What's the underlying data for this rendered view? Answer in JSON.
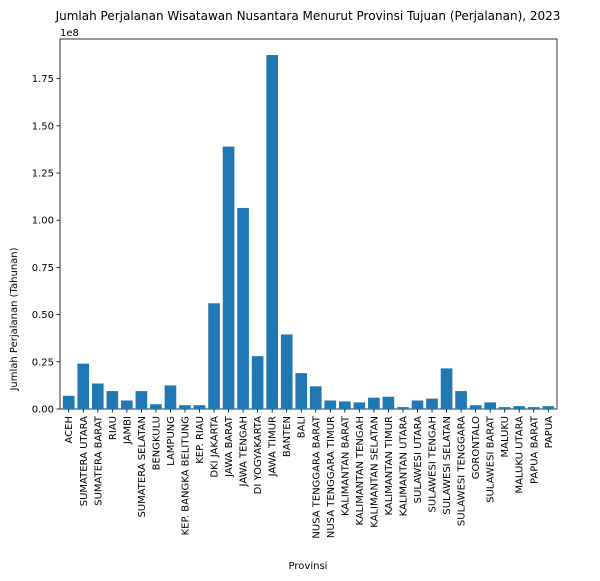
{
  "chart_data": {
    "type": "bar",
    "title": "Jumlah Perjalanan Wisatawan Nusantara Menurut Provinsi Tujuan (Perjalanan), 2023",
    "xlabel": "Provinsi",
    "ylabel": "Jumlah Perjalanan (Tahunan)",
    "y_offset_text": "1e8",
    "y_scale": 100000000,
    "ylim": [
      0,
      196000000
    ],
    "yticks": [
      0,
      25000000,
      50000000,
      75000000,
      100000000,
      125000000,
      150000000,
      175000000
    ],
    "ytick_labels": [
      "0.00",
      "0.25",
      "0.50",
      "0.75",
      "1.00",
      "1.25",
      "1.50",
      "1.75"
    ],
    "grid": false,
    "bar_color": "#1f77b4",
    "categories": [
      "ACEH",
      "SUMATERA UTARA",
      "SUMATERA BARAT",
      "RIAU",
      "JAMBI",
      "SUMATERA SELATAN",
      "BENGKULU",
      "LAMPUNG",
      "KEP. BANGKA BELITUNG",
      "KEP. RIAU",
      "DKI JAKARTA",
      "JAWA BARAT",
      "JAWA TENGAH",
      "DI YOGYAKARTA",
      "JAWA TIMUR",
      "BANTEN",
      "BALI",
      "NUSA TENGGARA BARAT",
      "NUSA TENGGARA TIMUR",
      "KALIMANTAN BARAT",
      "KALIMANTAN TENGAH",
      "KALIMANTAN SELATAN",
      "KALIMANTAN TIMUR",
      "KALIMANTAN UTARA",
      "SULAWESI UTARA",
      "SULAWESI TENGAH",
      "SULAWESI SELATAN",
      "SULAWESI TENGGARA",
      "GORONTALO",
      "SULAWESI BARAT",
      "MALUKU",
      "MALUKU UTARA",
      "PAPUA BARAT",
      "PAPUA"
    ],
    "values": [
      7000000,
      24000000,
      13500000,
      9500000,
      4500000,
      9500000,
      2500000,
      12500000,
      2000000,
      2000000,
      56000000,
      139000000,
      106500000,
      28000000,
      187500000,
      39500000,
      19000000,
      12000000,
      4500000,
      4000000,
      3500000,
      6000000,
      6500000,
      1000000,
      4500000,
      5500000,
      21500000,
      9500000,
      2000000,
      3500000,
      1000000,
      1500000,
      1000000,
      1500000
    ]
  }
}
